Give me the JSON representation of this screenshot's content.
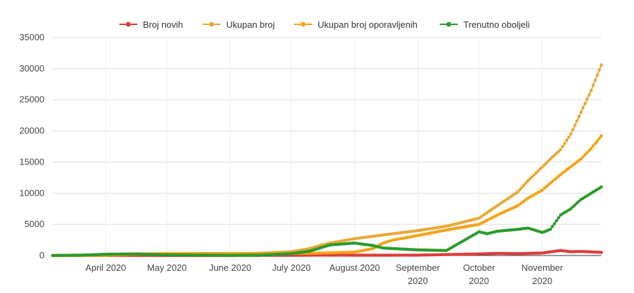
{
  "chart_data": {
    "type": "line",
    "title": "",
    "xlabel": "",
    "ylabel": "",
    "x_range": [
      "2020-03-06",
      "2020-11-30"
    ],
    "ylim": [
      0,
      35000
    ],
    "y_ticks": [
      0,
      5000,
      10000,
      15000,
      20000,
      25000,
      30000,
      35000
    ],
    "x_ticks": [
      {
        "date": "2020-04-01",
        "lines": [
          "April 2020"
        ]
      },
      {
        "date": "2020-05-01",
        "lines": [
          "May 2020"
        ]
      },
      {
        "date": "2020-06-01",
        "lines": [
          "June 2020"
        ]
      },
      {
        "date": "2020-07-01",
        "lines": [
          "July 2020"
        ]
      },
      {
        "date": "2020-08-01",
        "lines": [
          "August 2020"
        ]
      },
      {
        "date": "2020-09-01",
        "lines": [
          "September",
          "2020"
        ]
      },
      {
        "date": "2020-10-01",
        "lines": [
          "October",
          "2020"
        ]
      },
      {
        "date": "2020-11-01",
        "lines": [
          "November",
          "2020"
        ]
      }
    ],
    "grid": true,
    "legend_position": "top",
    "series": [
      {
        "name": "Broj novih",
        "color": "#dc3c3c",
        "points": [
          [
            "2020-03-06",
            0
          ],
          [
            "2020-04-01",
            10
          ],
          [
            "2020-05-01",
            5
          ],
          [
            "2020-06-01",
            2
          ],
          [
            "2020-07-01",
            30
          ],
          [
            "2020-07-15",
            60
          ],
          [
            "2020-08-01",
            50
          ],
          [
            "2020-08-15",
            45
          ],
          [
            "2020-09-01",
            60
          ],
          [
            "2020-09-15",
            150
          ],
          [
            "2020-10-01",
            250
          ],
          [
            "2020-10-10",
            350
          ],
          [
            "2020-10-20",
            300
          ],
          [
            "2020-11-01",
            400
          ],
          [
            "2020-11-10",
            800
          ],
          [
            "2020-11-15",
            600
          ],
          [
            "2020-11-20",
            650
          ],
          [
            "2020-11-30",
            500
          ]
        ]
      },
      {
        "name": "Ukupan broj",
        "color": "#e8a838",
        "points": [
          [
            "2020-03-06",
            0
          ],
          [
            "2020-03-20",
            50
          ],
          [
            "2020-04-01",
            150
          ],
          [
            "2020-04-15",
            250
          ],
          [
            "2020-05-01",
            310
          ],
          [
            "2020-06-01",
            330
          ],
          [
            "2020-06-15",
            350
          ],
          [
            "2020-07-01",
            600
          ],
          [
            "2020-07-10",
            1100
          ],
          [
            "2020-07-15",
            1600
          ],
          [
            "2020-07-20",
            2000
          ],
          [
            "2020-08-01",
            2700
          ],
          [
            "2020-08-15",
            3300
          ],
          [
            "2020-09-01",
            4000
          ],
          [
            "2020-09-15",
            4700
          ],
          [
            "2020-10-01",
            6000
          ],
          [
            "2020-10-10",
            8000
          ],
          [
            "2020-10-20",
            10200
          ],
          [
            "2020-10-25",
            12000
          ],
          [
            "2020-11-01",
            14200
          ],
          [
            "2020-11-05",
            15500
          ],
          [
            "2020-11-10",
            17000
          ],
          [
            "2020-11-15",
            19500
          ],
          [
            "2020-11-20",
            23000
          ],
          [
            "2020-11-25",
            26500
          ],
          [
            "2020-11-30",
            30600
          ]
        ]
      },
      {
        "name": "Ukupan broj oporavljenih",
        "color": "#f5a316",
        "points": [
          [
            "2020-03-06",
            0
          ],
          [
            "2020-04-01",
            50
          ],
          [
            "2020-04-15",
            200
          ],
          [
            "2020-05-01",
            280
          ],
          [
            "2020-06-01",
            300
          ],
          [
            "2020-07-01",
            320
          ],
          [
            "2020-07-15",
            380
          ],
          [
            "2020-08-01",
            550
          ],
          [
            "2020-08-10",
            1100
          ],
          [
            "2020-08-15",
            2000
          ],
          [
            "2020-08-20",
            2500
          ],
          [
            "2020-09-01",
            3200
          ],
          [
            "2020-09-15",
            4100
          ],
          [
            "2020-10-01",
            5000
          ],
          [
            "2020-10-10",
            6500
          ],
          [
            "2020-10-20",
            8000
          ],
          [
            "2020-10-25",
            9200
          ],
          [
            "2020-11-01",
            10500
          ],
          [
            "2020-11-10",
            13000
          ],
          [
            "2020-11-20",
            15500
          ],
          [
            "2020-11-25",
            17200
          ],
          [
            "2020-11-30",
            19200
          ]
        ]
      },
      {
        "name": "Trenutno oboljeli",
        "color": "#2a9b2a",
        "points": [
          [
            "2020-03-06",
            0
          ],
          [
            "2020-03-20",
            50
          ],
          [
            "2020-04-01",
            200
          ],
          [
            "2020-04-15",
            250
          ],
          [
            "2020-05-01",
            100
          ],
          [
            "2020-06-01",
            30
          ],
          [
            "2020-06-15",
            50
          ],
          [
            "2020-07-01",
            300
          ],
          [
            "2020-07-10",
            700
          ],
          [
            "2020-07-15",
            1200
          ],
          [
            "2020-07-20",
            1700
          ],
          [
            "2020-08-01",
            2000
          ],
          [
            "2020-08-10",
            1600
          ],
          [
            "2020-08-15",
            1200
          ],
          [
            "2020-09-01",
            900
          ],
          [
            "2020-09-15",
            800
          ],
          [
            "2020-10-01",
            3800
          ],
          [
            "2020-10-05",
            3500
          ],
          [
            "2020-10-10",
            3900
          ],
          [
            "2020-10-20",
            4200
          ],
          [
            "2020-10-25",
            4400
          ],
          [
            "2020-11-01",
            3700
          ],
          [
            "2020-11-05",
            4200
          ],
          [
            "2020-11-10",
            6500
          ],
          [
            "2020-11-15",
            7500
          ],
          [
            "2020-11-20",
            9000
          ],
          [
            "2020-11-30",
            11000
          ]
        ]
      }
    ]
  }
}
